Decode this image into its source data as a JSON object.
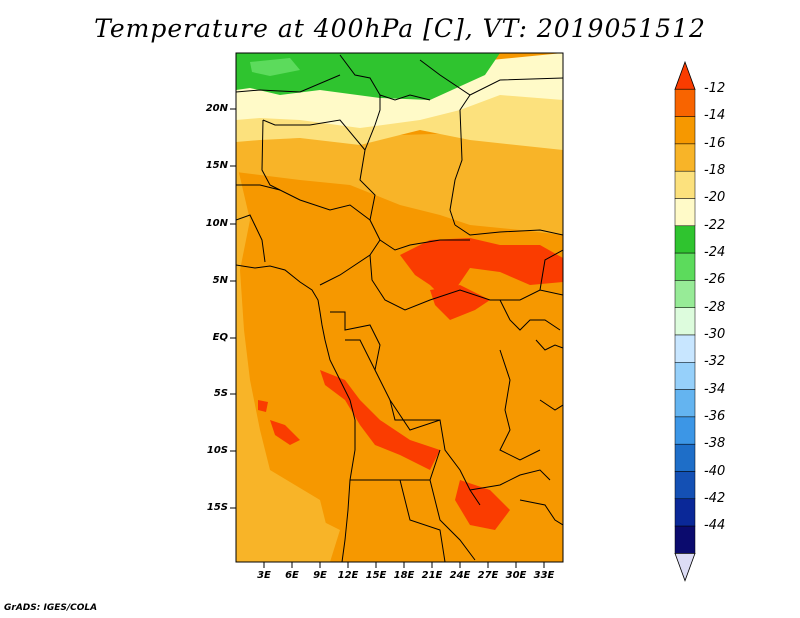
{
  "title": "Temperature at 400hPa [C], VT: 2019051512",
  "credit": "GrADS: IGES/COLA",
  "lat_labels": [
    "20N",
    "15N",
    "10N",
    "5N",
    "EQ",
    "5S",
    "10S",
    "15S"
  ],
  "lon_labels": [
    "3E",
    "6E",
    "9E",
    "12E",
    "15E",
    "18E",
    "21E",
    "24E",
    "27E",
    "30E",
    "33E"
  ],
  "colorbar": {
    "labels": [
      "-12",
      "-14",
      "-16",
      "-18",
      "-20",
      "-22",
      "-24",
      "-26",
      "-28",
      "-30",
      "-32",
      "-34",
      "-36",
      "-38",
      "-40",
      "-42",
      "-44"
    ],
    "colors": [
      "#fa3c00",
      "#f86400",
      "#f69800",
      "#f8b428",
      "#fce17d",
      "#fffac8",
      "#2fc42f",
      "#5cdb5c",
      "#97eb97",
      "#ddfcdd",
      "#c8e6ff",
      "#96d0fa",
      "#64b4f0",
      "#3c96e6",
      "#1e6ec8",
      "#1450b4",
      "#0a2898",
      "#0b0b6e",
      "#dcdcf5"
    ]
  },
  "chart_data": {
    "type": "heatmap",
    "title": "Temperature at 400hPa [C], VT: 2019051512",
    "units": "C",
    "lat_range": [
      -20,
      24
    ],
    "lon_range": [
      0,
      35
    ],
    "field_summary": [
      {
        "region": "northern Sahel above 20N",
        "value_range": [
          -24,
          -22
        ]
      },
      {
        "region": "15N-20N band",
        "value_range": [
          -20,
          -18
        ]
      },
      {
        "region": "central Africa 10N to 15S",
        "value_range": [
          -16,
          -14
        ]
      },
      {
        "region": "CAR / South Sudan around 5N-8N",
        "value_range": [
          -14,
          -12
        ]
      },
      {
        "region": "Angola coast and southern DRC",
        "value_range": [
          -14,
          -12
        ]
      }
    ]
  }
}
